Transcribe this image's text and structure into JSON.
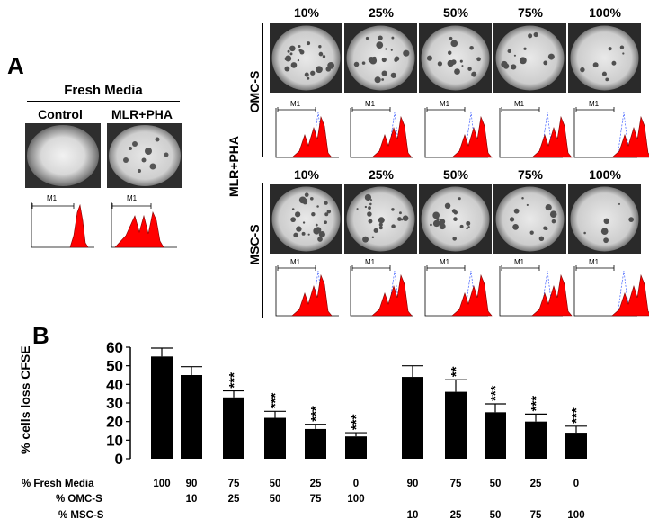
{
  "panel_a": {
    "letter": "A",
    "fresh_media": {
      "header": "Fresh Media",
      "columns": [
        "Control",
        "MLR+PHA"
      ],
      "gate_label": "M1"
    },
    "side_label": "MLR+PHA",
    "omc": {
      "label": "OMC-S",
      "percents": [
        "10%",
        "25%",
        "50%",
        "75%",
        "100%"
      ],
      "gate_label": "M1"
    },
    "msc": {
      "label": "MSC-S",
      "percents": [
        "10%",
        "25%",
        "50%",
        "75%",
        "100%"
      ],
      "gate_label": "M1"
    }
  },
  "panel_b": {
    "letter": "B",
    "rows": [
      {
        "label": "% Fresh Media",
        "values": [
          "100",
          "90",
          "75",
          "50",
          "25",
          "0",
          "90",
          "75",
          "50",
          "25",
          "0"
        ]
      },
      {
        "label": "% OMC-S",
        "values": [
          "",
          "10",
          "25",
          "50",
          "75",
          "100",
          "",
          "",
          "",
          "",
          ""
        ]
      },
      {
        "label": "% MSC-S",
        "values": [
          "",
          "",
          "",
          "",
          "",
          "",
          "10",
          "25",
          "50",
          "75",
          "100"
        ]
      }
    ]
  },
  "chart_data": {
    "type": "bar",
    "ylabel": "% cells loss CFSE",
    "xlabel": "",
    "ylim": [
      0,
      60
    ],
    "yticks": [
      "0",
      "10",
      "20",
      "30",
      "40",
      "50",
      "60"
    ],
    "values": [
      55,
      45,
      33,
      22,
      16,
      12,
      44,
      36,
      25,
      20,
      14
    ],
    "errors": [
      4.5,
      4.5,
      3.5,
      3.5,
      2.5,
      2.0,
      6.0,
      6.5,
      4.5,
      4.0,
      3.5
    ],
    "significance": [
      "",
      "",
      "***",
      "***",
      "***",
      "***",
      "",
      "**",
      "***",
      "***",
      "***"
    ],
    "bar_color": "#000000"
  }
}
